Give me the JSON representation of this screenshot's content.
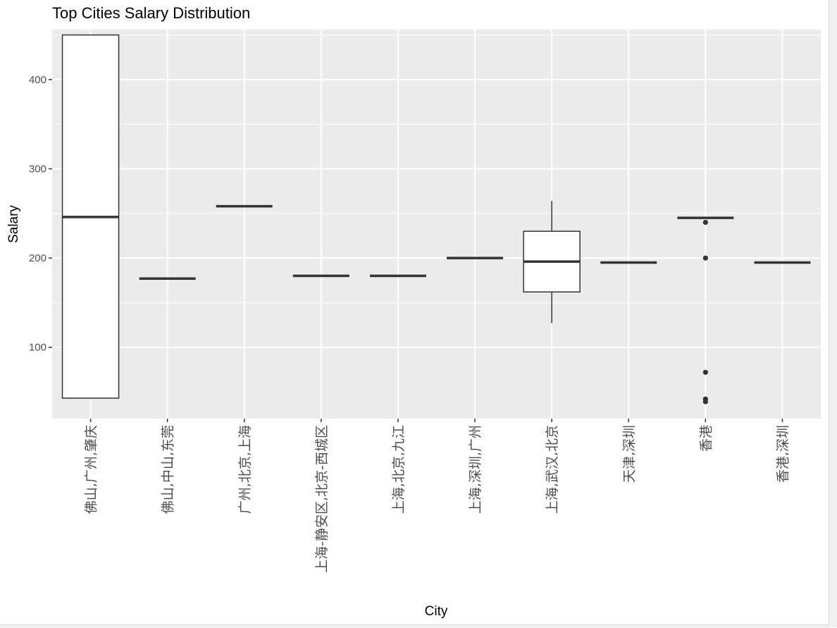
{
  "chart_data": {
    "type": "box",
    "title": "Top Cities Salary Distribution",
    "xlabel": "City",
    "ylabel": "Salary",
    "ylim": [
      20,
      456
    ],
    "yticks": [
      100,
      200,
      300,
      400
    ],
    "grid": true,
    "categories": [
      "佛山,广州,肇庆",
      "佛山,中山,东莞",
      "广州,北京,上海",
      "上海-静安区,北京-西城区",
      "上海,北京,九江",
      "上海,深圳,广州",
      "上海,武汉,北京",
      "天津,深圳",
      "香港",
      "香港,深圳"
    ],
    "boxes": [
      {
        "min": 43,
        "q1": 43,
        "median": 246,
        "q3": 450,
        "max": 450,
        "outliers": []
      },
      {
        "min": 177,
        "q1": 177,
        "median": 177,
        "q3": 177,
        "max": 177,
        "outliers": []
      },
      {
        "min": 258,
        "q1": 258,
        "median": 258,
        "q3": 258,
        "max": 258,
        "outliers": []
      },
      {
        "min": 180,
        "q1": 180,
        "median": 180,
        "q3": 180,
        "max": 180,
        "outliers": []
      },
      {
        "min": 180,
        "q1": 180,
        "median": 180,
        "q3": 180,
        "max": 180,
        "outliers": []
      },
      {
        "min": 200,
        "q1": 200,
        "median": 200,
        "q3": 200,
        "max": 200,
        "outliers": []
      },
      {
        "min": 127,
        "q1": 162,
        "median": 196,
        "q3": 230,
        "max": 264,
        "outliers": []
      },
      {
        "min": 195,
        "q1": 195,
        "median": 195,
        "q3": 195,
        "max": 195,
        "outliers": []
      },
      {
        "min": 245,
        "q1": 245,
        "median": 245,
        "q3": 245,
        "max": 245,
        "outliers": [
          240,
          200,
          72,
          42,
          39
        ]
      },
      {
        "min": 195,
        "q1": 195,
        "median": 195,
        "q3": 195,
        "max": 195,
        "outliers": []
      }
    ],
    "colors": {
      "panel": "#ebebeb",
      "grid": "#ffffff",
      "box_fill": "#ffffff",
      "box_line": "#333333",
      "tick": "#4d4d4d"
    }
  }
}
